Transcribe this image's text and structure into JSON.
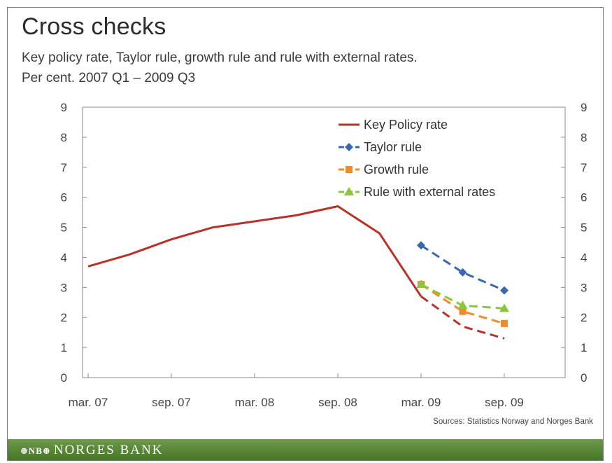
{
  "chart_data": {
    "type": "line",
    "title": "Cross checks",
    "subtitle_lines": [
      "Key policy rate, Taylor rule, growth rule and rule with external rates.",
      "Per cent. 2007 Q1 – 2009 Q3"
    ],
    "source": "Sources: Statistics Norway and Norges Bank",
    "ylim": [
      0,
      9
    ],
    "yticks": [
      0,
      1,
      2,
      3,
      4,
      5,
      6,
      7,
      8,
      9
    ],
    "x_range": [
      0,
      10
    ],
    "x_ticks": [
      {
        "x": 0,
        "label": "mar. 07"
      },
      {
        "x": 2,
        "label": "sep. 07"
      },
      {
        "x": 4,
        "label": "mar. 08"
      },
      {
        "x": 6,
        "label": "sep. 08"
      },
      {
        "x": 8,
        "label": "mar. 09"
      },
      {
        "x": 10,
        "label": "sep. 09"
      }
    ],
    "legend_position": "top-right",
    "grid": false,
    "series": [
      {
        "name": "Key Policy rate",
        "color": "#b8322a",
        "marker": "none",
        "segments": [
          {
            "style": "solid",
            "points": [
              [
                0,
                3.7
              ],
              [
                1,
                4.1
              ],
              [
                2,
                4.6
              ],
              [
                3,
                5.0
              ],
              [
                4,
                5.2
              ],
              [
                5,
                5.4
              ],
              [
                6,
                5.7
              ],
              [
                7,
                4.8
              ],
              [
                8,
                2.7
              ]
            ]
          },
          {
            "style": "dashed",
            "points": [
              [
                8,
                2.7
              ],
              [
                9,
                1.7
              ],
              [
                10,
                1.3
              ]
            ]
          }
        ]
      },
      {
        "name": "Taylor rule",
        "color": "#3a67b0",
        "marker": "diamond",
        "segments": [
          {
            "style": "dashed",
            "points": [
              [
                8,
                4.4
              ],
              [
                9,
                3.5
              ],
              [
                10,
                2.9
              ]
            ]
          }
        ]
      },
      {
        "name": "Growth rule",
        "color": "#f08c28",
        "marker": "square",
        "segments": [
          {
            "style": "dashed",
            "points": [
              [
                8,
                3.1
              ],
              [
                9,
                2.2
              ],
              [
                10,
                1.8
              ]
            ]
          }
        ]
      },
      {
        "name": "Rule with external rates",
        "color": "#8cc63f",
        "marker": "triangle",
        "segments": [
          {
            "style": "dashed",
            "points": [
              [
                8,
                3.1
              ],
              [
                9,
                2.4
              ],
              [
                10,
                2.3
              ]
            ]
          }
        ]
      }
    ]
  },
  "footer": {
    "logo_mark": "⊕NB⊕",
    "brand": "NORGES BANK"
  }
}
